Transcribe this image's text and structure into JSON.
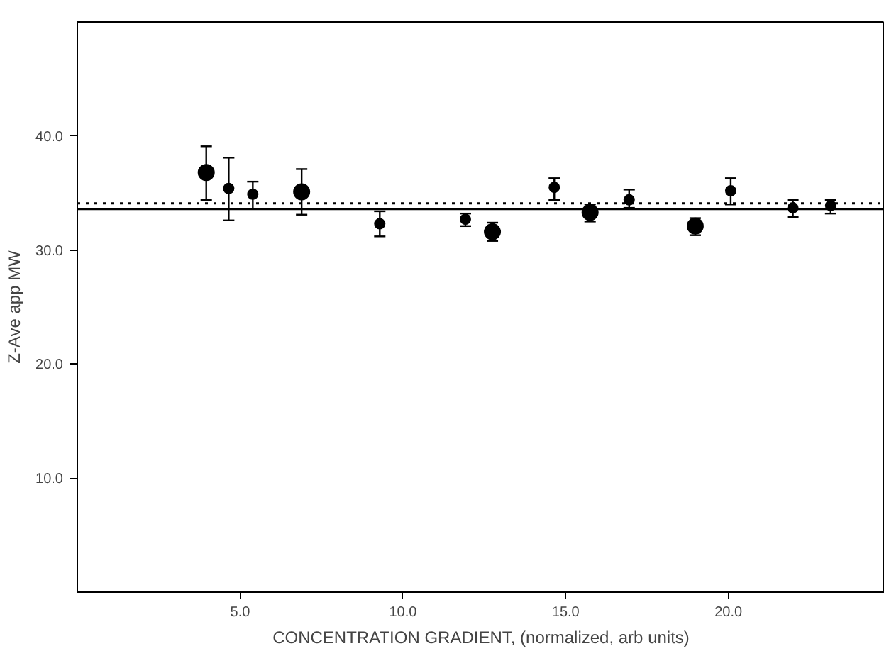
{
  "chart_data": {
    "type": "scatter",
    "xlabel": "CONCENTRATION GRADIENT, (normalized, arb units)",
    "ylabel": "Z-Ave app MW",
    "xlim": [
      0,
      24.8
    ],
    "ylim": [
      0,
      50
    ],
    "xticks": [
      {
        "value": 5,
        "label": "5.0"
      },
      {
        "value": 10,
        "label": "10.0"
      },
      {
        "value": 15,
        "label": "15.0"
      },
      {
        "value": 20,
        "label": "20.0"
      }
    ],
    "yticks": [
      {
        "value": 10,
        "label": "10.0"
      },
      {
        "value": 20,
        "label": "20.0"
      },
      {
        "value": 30,
        "label": "30.0"
      },
      {
        "value": 40,
        "label": "40.0"
      }
    ],
    "grid": false,
    "marker": "circle",
    "series": [
      {
        "color": "#000000",
        "x": [
          3.96,
          6.89,
          12.75,
          15.75,
          18.98
        ],
        "values": [
          36.8,
          35.1,
          31.6,
          33.3,
          32.1
        ],
        "errors": [
          [
            34.4,
            39.1
          ],
          [
            33.1,
            37.1
          ],
          [
            30.8,
            32.4
          ],
          [
            32.5,
            34.0
          ],
          [
            31.3,
            32.8
          ]
        ]
      },
      {
        "color": "#000000",
        "x": [
          4.65,
          5.39,
          9.29,
          11.92,
          14.65,
          16.95,
          20.07,
          21.98,
          23.14
        ],
        "values": [
          35.4,
          34.9,
          32.3,
          32.7,
          35.5,
          34.4,
          35.2,
          33.7,
          33.9
        ],
        "errors": [
          [
            32.6,
            38.1
          ],
          [
            33.6,
            36.0
          ],
          [
            31.2,
            33.4
          ],
          [
            32.1,
            33.2
          ],
          [
            34.4,
            36.3
          ],
          [
            33.7,
            35.3
          ],
          [
            34.0,
            36.3
          ],
          [
            32.9,
            34.4
          ],
          [
            33.2,
            34.4
          ]
        ]
      }
    ],
    "ref_lines": [
      {
        "axis": "y",
        "value": 33.6,
        "color": "#000000",
        "line_style": "solid"
      },
      {
        "axis": "y",
        "value": 34.1,
        "color": "#000000",
        "line_style": "dotted"
      }
    ]
  }
}
